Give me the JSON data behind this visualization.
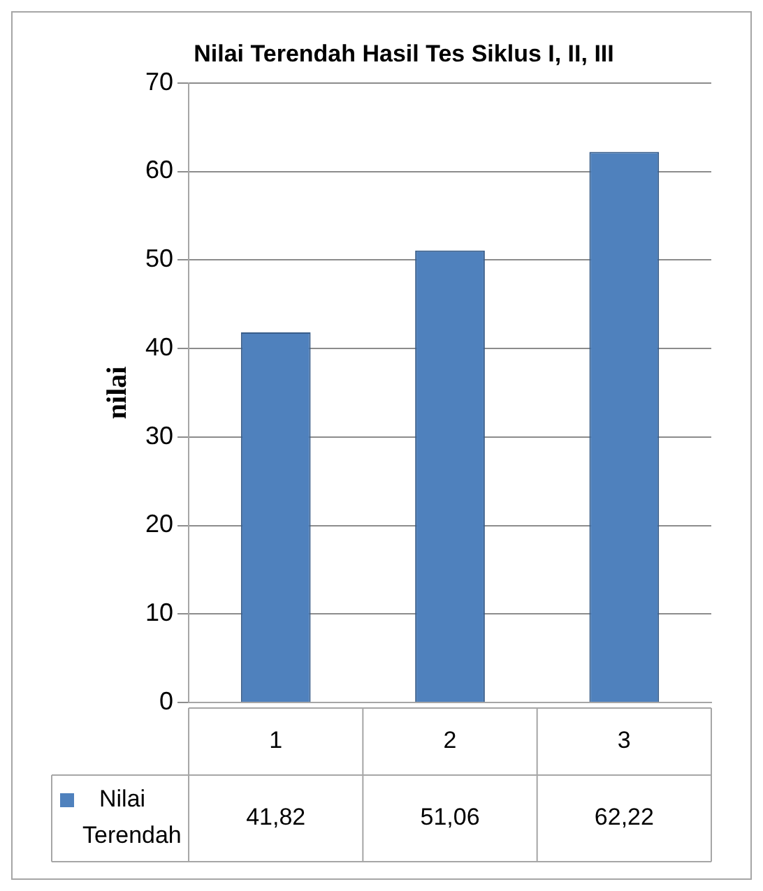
{
  "chart_data": {
    "type": "bar",
    "title": "Nilai Terendah Hasil Tes Siklus I, II, III",
    "ylabel": "nilai",
    "categories": [
      "1",
      "2",
      "3"
    ],
    "series": [
      {
        "name": "Nilai Terendah",
        "color": "#4f81bd",
        "values": [
          41.82,
          51.06,
          62.22
        ],
        "value_labels": [
          "41,82",
          "51,06",
          "62,22"
        ]
      }
    ],
    "ylim": [
      0,
      70
    ],
    "yticks": [
      0,
      10,
      20,
      30,
      40,
      50,
      60,
      70
    ],
    "grid": "y",
    "legend": "bottom"
  }
}
